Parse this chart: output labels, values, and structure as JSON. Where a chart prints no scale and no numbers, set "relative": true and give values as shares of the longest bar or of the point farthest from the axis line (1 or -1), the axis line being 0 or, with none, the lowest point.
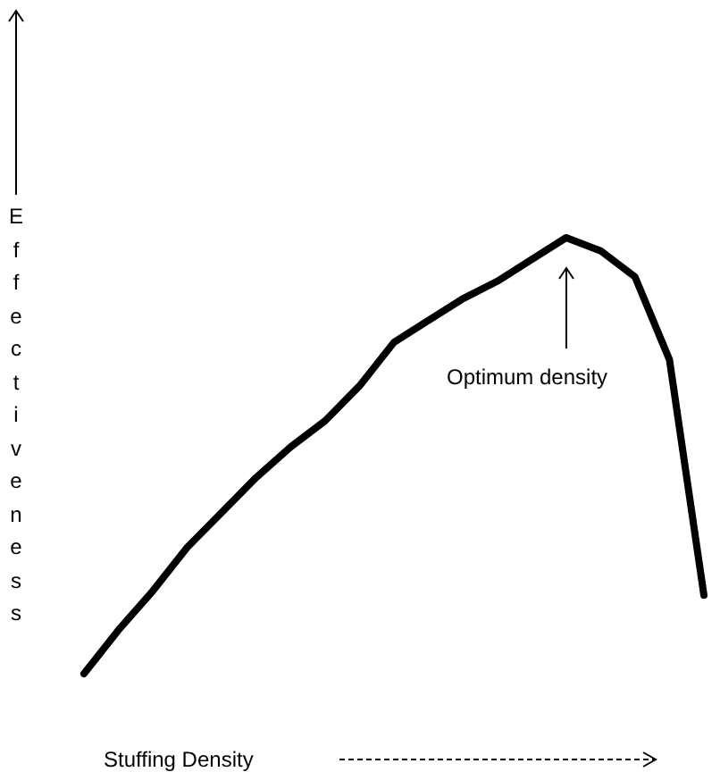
{
  "chart_data": {
    "type": "line",
    "relative": true,
    "xlabel": "Stuffing Density",
    "ylabel": "Effectiveness",
    "annotations": [
      "Optimum density"
    ],
    "categories": [
      null,
      null,
      null,
      null,
      null,
      null,
      null,
      null,
      null,
      null,
      null,
      null,
      null,
      null,
      null,
      null,
      null,
      null,
      null
    ],
    "values": [
      0,
      0.1,
      0.19,
      0.29,
      0.37,
      0.45,
      0.52,
      0.58,
      0.66,
      0.76,
      0.81,
      0.86,
      0.9,
      0.95,
      1,
      0.97,
      0.91,
      0.72,
      0.18
    ],
    "color": "#000000"
  }
}
